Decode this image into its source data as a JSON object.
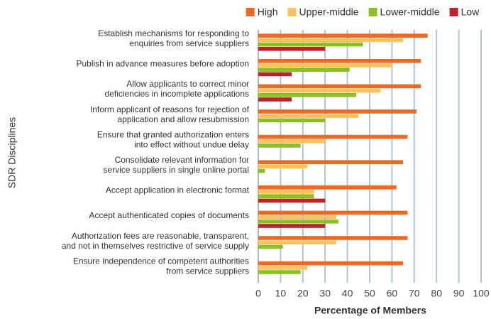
{
  "chart_data": {
    "type": "hbar",
    "y_label": "SDR Disciplines",
    "x_label": "Percentage of Members",
    "categories": [
      [
        "Establish mechanisms for responding to",
        "enquiries from service suppliers"
      ],
      [
        "Publish in advance measures before adoption"
      ],
      [
        "Allow applicants to correct minor",
        "deficiencies in incomplete applications"
      ],
      [
        "Inform applicant of reasons for rejection of",
        "application and allow resubmission"
      ],
      [
        "Ensure that granted authorization enters",
        "into effect without undue delay"
      ],
      [
        "Consolidate relevant information for",
        "service suppliers in single online portal"
      ],
      [
        "Accept application in electronic format"
      ],
      [
        "Accept authenticated copies of documents"
      ],
      [
        "Authorization fees are reasonable, transparent,",
        "and not in themselves restrictive of service supply"
      ],
      [
        "Ensure independence of competent authorities",
        "from service suppliers"
      ]
    ],
    "series": [
      {
        "name": "High",
        "color": "#ee6a24",
        "values": [
          76,
          73,
          73,
          71,
          67,
          65,
          62,
          67,
          67,
          65
        ]
      },
      {
        "name": "Upper-middle",
        "color": "#fdc25e",
        "values": [
          65,
          60,
          55,
          45,
          30,
          22,
          25,
          35,
          35,
          22
        ]
      },
      {
        "name": "Lower-middle",
        "color": "#8dbf27",
        "values": [
          47,
          41,
          44,
          30,
          19,
          3,
          25,
          36,
          11,
          19
        ]
      },
      {
        "name": "Low",
        "color": "#c0202a",
        "values": [
          30,
          15,
          15,
          0,
          0,
          0,
          30,
          30,
          0,
          0
        ]
      }
    ],
    "xlim": [
      0,
      100
    ],
    "xticks": [
      0,
      10,
      20,
      30,
      40,
      50,
      60,
      70,
      80,
      90,
      100
    ],
    "grid": true,
    "legend": "top"
  }
}
